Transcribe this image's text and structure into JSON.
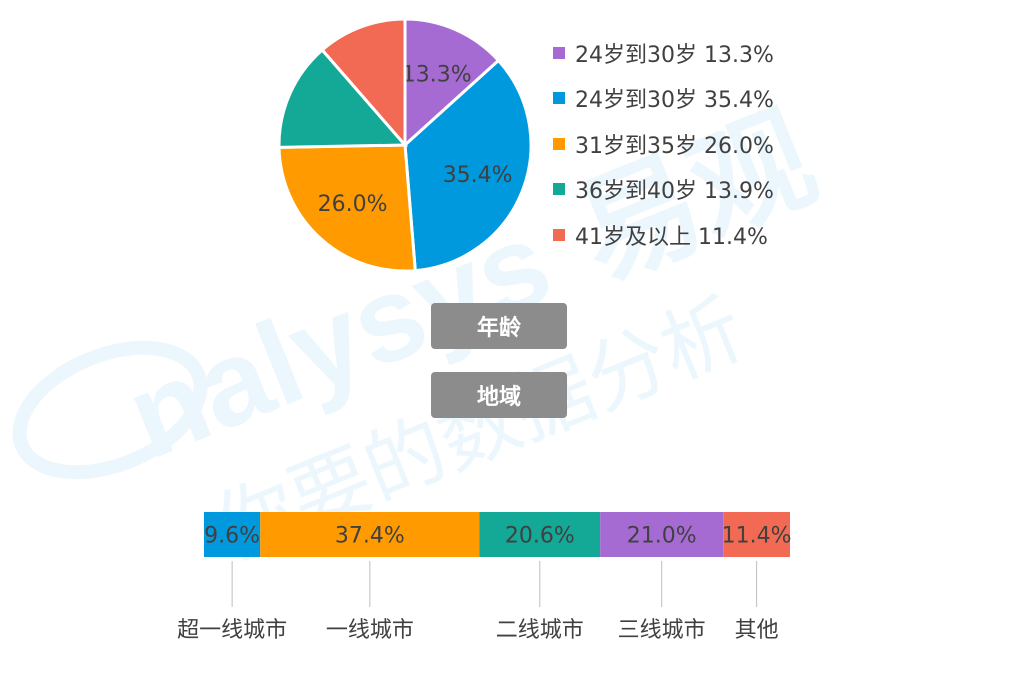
{
  "watermark": {
    "brand_latin": "nalysys",
    "brand_cn": "易观",
    "slogan": "你要的数据分析"
  },
  "age_label": "年龄",
  "region_label": "地域",
  "colors": {
    "purple": "#a66bd3",
    "blue": "#0099de",
    "orange": "#ff9b00",
    "teal": "#14a896",
    "red": "#f26a53"
  },
  "chart_data": [
    {
      "type": "pie",
      "start_angle_deg": 0,
      "slices": [
        {
          "label": "24岁到30岁 13.3%",
          "value": 13.3,
          "display": "13.3%",
          "color": "#a66bd3"
        },
        {
          "label": "24岁到30岁 35.4%",
          "value": 35.4,
          "display": "35.4%",
          "color": "#0099de"
        },
        {
          "label": "31岁到35岁 26.0%",
          "value": 26.0,
          "display": "26.0%",
          "color": "#ff9b00"
        },
        {
          "label": "36岁到40岁 13.9%",
          "value": 13.9,
          "display": "",
          "color": "#14a896"
        },
        {
          "label": "41岁及以上 11.4%",
          "value": 11.4,
          "display": "",
          "color": "#f26a53"
        }
      ],
      "legend_position": "right"
    },
    {
      "type": "bar",
      "orientation": "horizontal-stacked-100",
      "segments": [
        {
          "category": "超一线城市",
          "value": 9.6,
          "display": "9.6%",
          "color": "#0099de"
        },
        {
          "category": "一线城市",
          "value": 37.4,
          "display": "37.4%",
          "color": "#ff9b00"
        },
        {
          "category": "二线城市",
          "value": 20.6,
          "display": "20.6%",
          "color": "#14a896"
        },
        {
          "category": "三线城市",
          "value": 21.0,
          "display": "21.0%",
          "color": "#a66bd3"
        },
        {
          "category": "其他",
          "value": 11.4,
          "display": "11.4%",
          "color": "#f26a53"
        }
      ]
    }
  ]
}
